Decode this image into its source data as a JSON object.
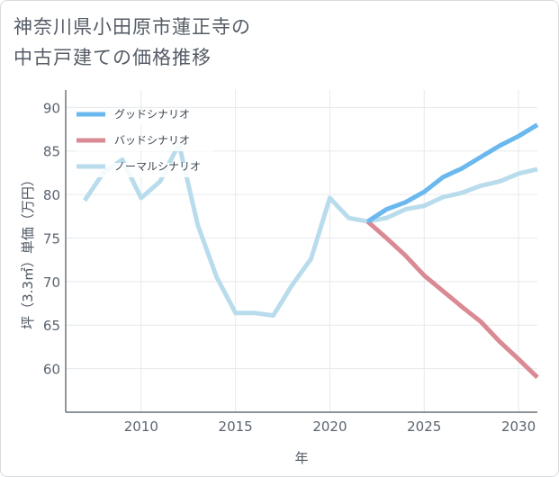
{
  "title_lines": [
    "神奈川県小田原市蓮正寺の",
    "中古戸建ての価格推移"
  ],
  "colors": {
    "good": "#6ab8ee",
    "bad": "#d98a93",
    "normal": "#b9dcec",
    "grid": "#e6e9ec",
    "axis": "#4a535d"
  },
  "chart_data": {
    "type": "line",
    "xlabel": "年",
    "ylabel": "坪（3.3㎡）単価（万円）",
    "xlim": [
      2006,
      2031
    ],
    "ylim": [
      55,
      92
    ],
    "x_ticks": [
      2010,
      2015,
      2020,
      2025,
      2030
    ],
    "y_ticks": [
      60,
      65,
      70,
      75,
      80,
      85,
      90
    ],
    "grid": true,
    "legend_position": "top-left",
    "series": [
      {
        "name": "グッドシナリオ",
        "key": "good",
        "points": [
          [
            2022,
            76.9
          ],
          [
            2023,
            78.3
          ],
          [
            2024,
            79.1
          ],
          [
            2025,
            80.3
          ],
          [
            2026,
            82.0
          ],
          [
            2027,
            83.0
          ],
          [
            2028,
            84.3
          ],
          [
            2029,
            85.6
          ],
          [
            2030,
            86.7
          ],
          [
            2031,
            88.0
          ]
        ]
      },
      {
        "name": "バッドシナリオ",
        "key": "bad",
        "points": [
          [
            2022,
            76.9
          ],
          [
            2023,
            75.0
          ],
          [
            2024,
            73.0
          ],
          [
            2025,
            70.7
          ],
          [
            2026,
            68.9
          ],
          [
            2027,
            67.1
          ],
          [
            2028,
            65.4
          ],
          [
            2029,
            63.1
          ],
          [
            2030,
            61.1
          ],
          [
            2031,
            59.0
          ]
        ]
      },
      {
        "name": "ノーマルシナリオ",
        "key": "normal",
        "points": [
          [
            2007,
            79.3
          ],
          [
            2008,
            82.5
          ],
          [
            2009,
            84.0
          ],
          [
            2010,
            79.6
          ],
          [
            2011,
            81.5
          ],
          [
            2012,
            85.8
          ],
          [
            2013,
            76.5
          ],
          [
            2014,
            70.5
          ],
          [
            2015,
            66.4
          ],
          [
            2016,
            66.4
          ],
          [
            2017,
            66.1
          ],
          [
            2018,
            69.6
          ],
          [
            2019,
            72.6
          ],
          [
            2020,
            79.6
          ],
          [
            2021,
            77.3
          ],
          [
            2022,
            76.9
          ],
          [
            2023,
            77.3
          ],
          [
            2024,
            78.3
          ],
          [
            2025,
            78.7
          ],
          [
            2026,
            79.7
          ],
          [
            2027,
            80.2
          ],
          [
            2028,
            81.0
          ],
          [
            2029,
            81.5
          ],
          [
            2030,
            82.4
          ],
          [
            2031,
            82.9
          ]
        ]
      }
    ]
  }
}
